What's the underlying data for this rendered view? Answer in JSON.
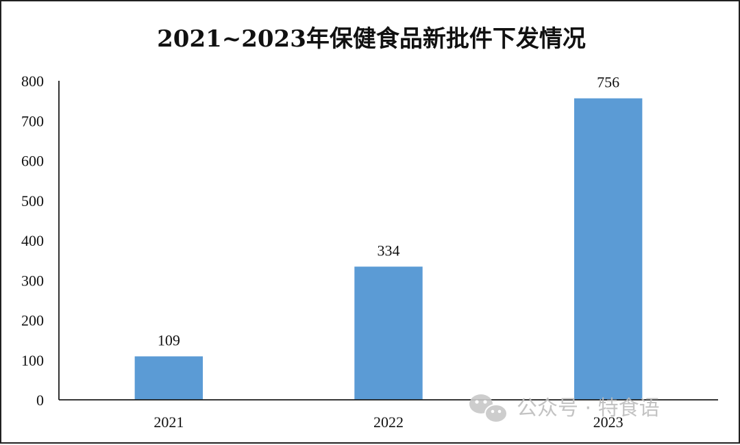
{
  "chart_data": {
    "type": "bar",
    "title": "2021~2023年保健食品新批件下发情况",
    "xlabel": "",
    "ylabel": "",
    "categories": [
      "2021",
      "2022",
      "2023"
    ],
    "values": [
      109,
      334,
      756
    ],
    "ylim": [
      0,
      800
    ],
    "yticks": [
      0,
      100,
      200,
      300,
      400,
      500,
      600,
      700,
      800
    ],
    "grid": false,
    "legend": "none",
    "bar_color": "#5b9bd5"
  },
  "watermark": {
    "icon": "wechat-icon",
    "text": "公众号 · 特食语"
  }
}
